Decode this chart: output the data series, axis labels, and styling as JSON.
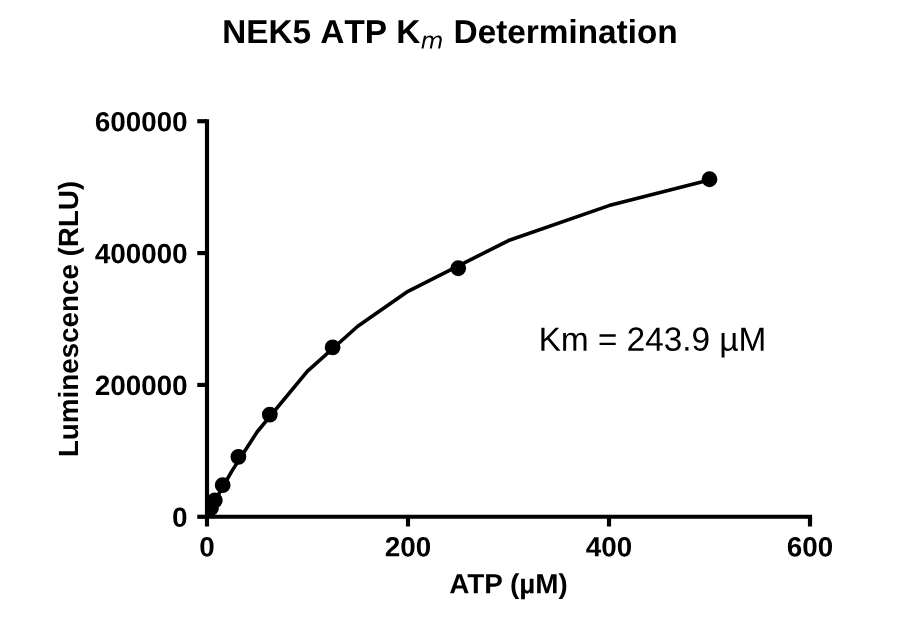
{
  "chart_data": {
    "type": "scatter",
    "title": "NEK5 ATP K$_{m}$ Determination",
    "xlabel": "ATP (µM)",
    "ylabel": "Luminescence (RLU)",
    "annotations": [
      "Km = 243.9 µM"
    ],
    "series": [
      {
        "color": "#000000",
        "marker": "circle",
        "x": [
          3.9,
          7.8,
          15.6,
          31.25,
          62.5,
          125,
          250,
          500
        ],
        "values": [
          13000,
          25000,
          48000,
          91000,
          155000,
          257000,
          377000,
          512000
        ]
      },
      {
        "type": "line",
        "color": "#000000",
        "marker": "none",
        "line_style": "solid",
        "x": [
          0,
          10,
          25,
          50,
          100,
          150,
          200,
          300,
          400,
          500
        ],
        "values": [
          0,
          30000,
          70000,
          129000,
          221000,
          289000,
          342000,
          419000,
          472000,
          511000
        ]
      }
    ],
    "xlim": [
      0,
      600
    ],
    "ylim": [
      0,
      600000
    ],
    "xticks": [
      0,
      200,
      400,
      600
    ],
    "yticks": [
      0,
      200000,
      400000,
      600000
    ],
    "grid": false,
    "legend": false
  }
}
